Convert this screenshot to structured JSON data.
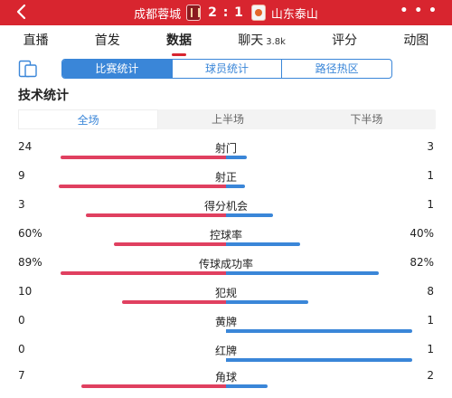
{
  "header": {
    "home_team": "成都蓉城",
    "score": "2 : 1",
    "away_team": "山东泰山",
    "more": "• • •"
  },
  "nav": [
    {
      "label": "直播",
      "sub": ""
    },
    {
      "label": "首发",
      "sub": ""
    },
    {
      "label": "数据",
      "sub": ""
    },
    {
      "label": "聊天",
      "sub": "3.8k"
    },
    {
      "label": "评分",
      "sub": ""
    },
    {
      "label": "动图",
      "sub": ""
    }
  ],
  "segment": [
    "比赛统计",
    "球员统计",
    "路径热区"
  ],
  "section_title": "技术统计",
  "periods": [
    "全场",
    "上半场",
    "下半场"
  ],
  "colors": {
    "home": "#e04060",
    "away": "#3a86d8",
    "brand": "#d8252f"
  },
  "stats": [
    {
      "name": "射门",
      "home": "24",
      "away": "3",
      "home_share": 0.889,
      "away_share": 0.111
    },
    {
      "name": "射正",
      "home": "9",
      "away": "1",
      "home_share": 0.9,
      "away_share": 0.1
    },
    {
      "name": "得分机会",
      "home": "3",
      "away": "1",
      "home_share": 0.75,
      "away_share": 0.25
    },
    {
      "name": "控球率",
      "home": "60%",
      "away": "40%",
      "home_share": 0.6,
      "away_share": 0.4
    },
    {
      "name": "传球成功率",
      "home": "89%",
      "away": "82%",
      "home_share": 0.89,
      "away_share": 0.82
    },
    {
      "name": "犯规",
      "home": "10",
      "away": "8",
      "home_share": 0.556,
      "away_share": 0.444
    },
    {
      "name": "黄牌",
      "home": "0",
      "away": "1",
      "home_share": 0.0,
      "away_share": 1.0
    },
    {
      "name": "红牌",
      "home": "0",
      "away": "1",
      "home_share": 0.0,
      "away_share": 1.0
    },
    {
      "name": "角球",
      "home": "7",
      "away": "2",
      "home_share": 0.778,
      "away_share": 0.222
    }
  ]
}
